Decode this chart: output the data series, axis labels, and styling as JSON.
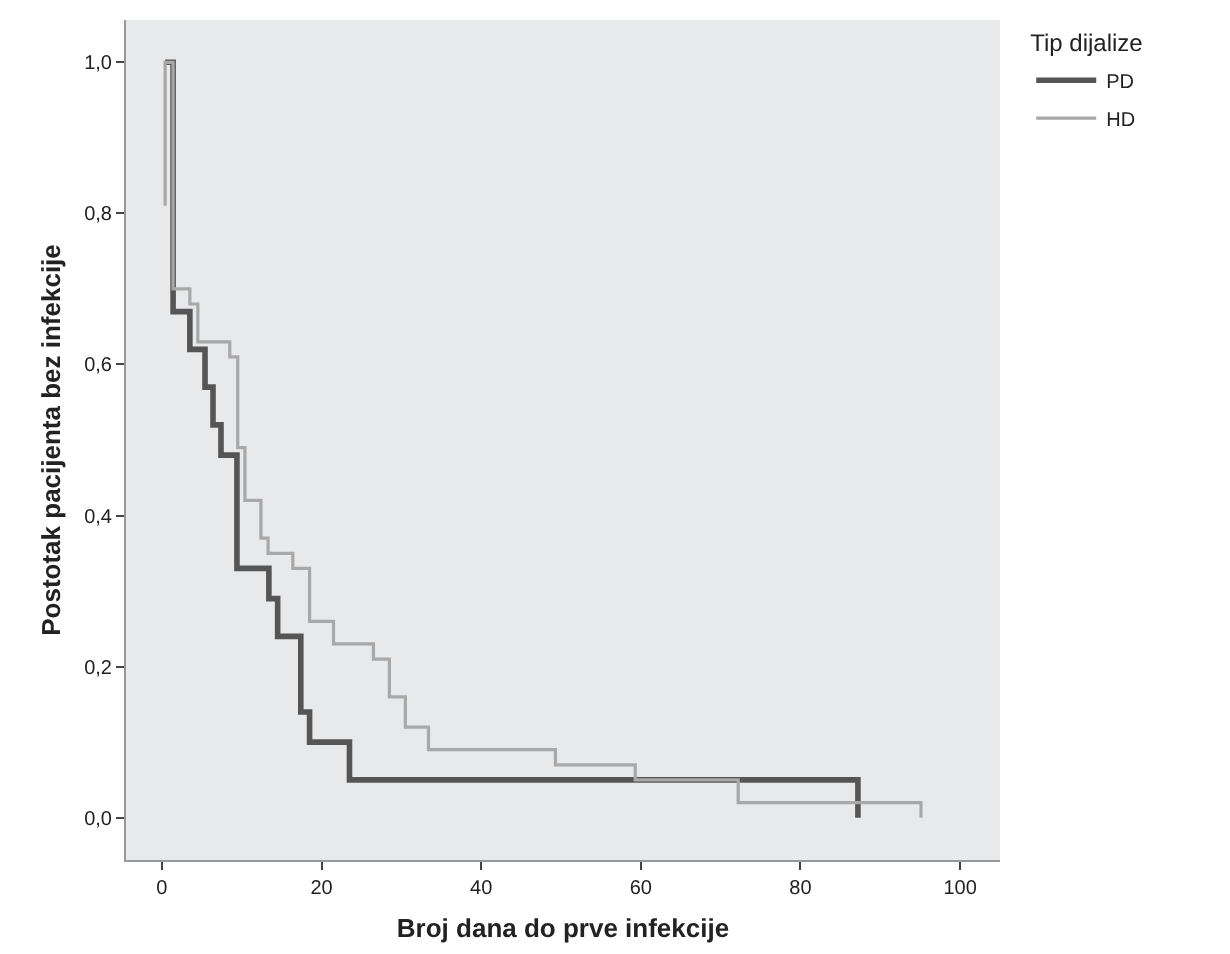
{
  "chart_data": {
    "type": "step",
    "xlabel": "Broj dana do prve infekcije",
    "ylabel": "Postotak pacijenta bez infekcije",
    "legend_title": "Tip dijalize",
    "legend": "top right",
    "series": [
      {
        "name": "PD",
        "color": "#555555",
        "x": [
          0.4,
          1.4,
          3.5,
          5.4,
          6.4,
          7.4,
          9.4,
          13.4,
          14.5,
          17.4,
          18.5,
          23.5,
          87.2
        ],
        "values": [
          1.0,
          0.67,
          0.62,
          0.57,
          0.52,
          0.48,
          0.33,
          0.29,
          0.24,
          0.14,
          0.1,
          0.05,
          0
        ]
      },
      {
        "name": "HD",
        "color": "#a8a8a8",
        "x": [
          0.4,
          0.4,
          1.4,
          3.5,
          4.5,
          8.5,
          9.5,
          10.4,
          12.4,
          13.3,
          16.4,
          18.5,
          21.5,
          26.5,
          28.5,
          30.5,
          33.4,
          49.3,
          59.3,
          72.2,
          95.1
        ],
        "values": [
          0.81,
          1.0,
          0.7,
          0.68,
          0.63,
          0.61,
          0.49,
          0.42,
          0.37,
          0.35,
          0.33,
          0.26,
          0.23,
          0.21,
          0.16,
          0.12,
          0.09,
          0.07,
          0.05,
          0.02,
          0
        ]
      }
    ],
    "xlim": [
      -4.5,
      105
    ],
    "xticks": [
      0,
      20,
      40,
      60,
      80,
      100
    ],
    "ylim": [
      -0.056,
      1.056
    ],
    "yticks": [
      {
        "value": 0,
        "label": "0,0"
      },
      {
        "value": 0.2,
        "label": "0,2"
      },
      {
        "value": 0.4,
        "label": "0,4"
      },
      {
        "value": 0.6,
        "label": "0,6"
      },
      {
        "value": 0.8,
        "label": "0,8"
      },
      {
        "value": 1,
        "label": "1,0"
      }
    ],
    "grid": false
  }
}
